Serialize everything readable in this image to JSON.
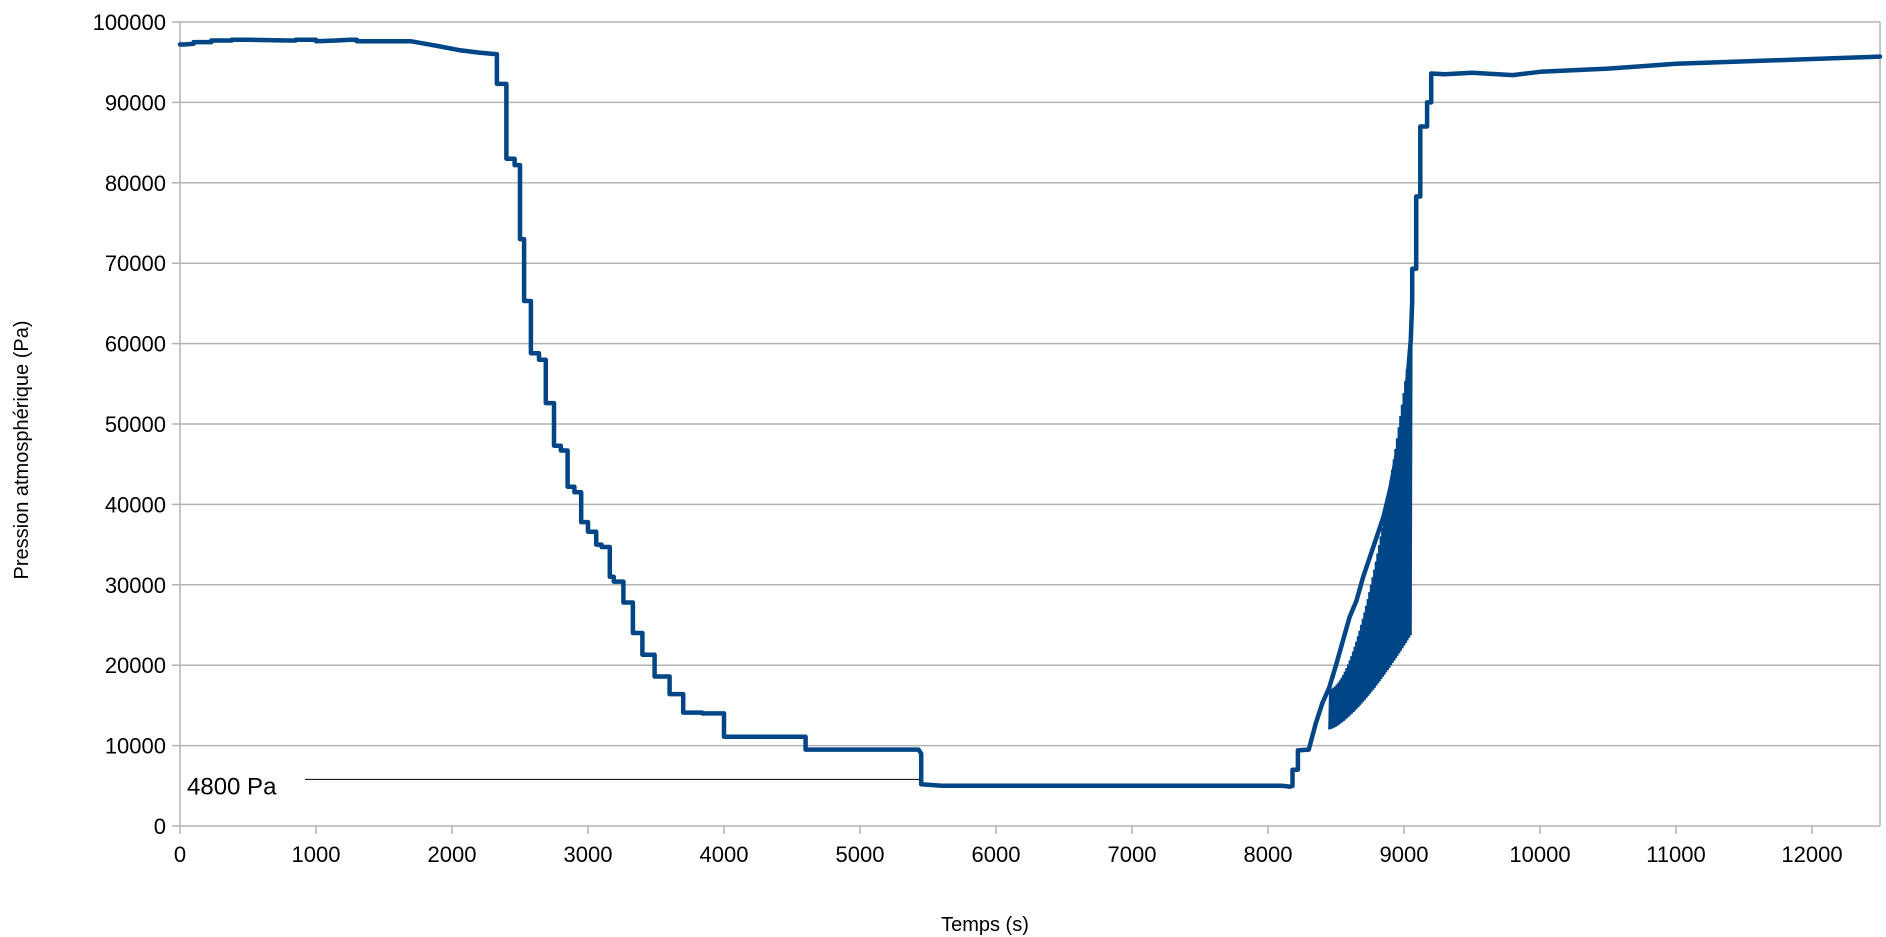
{
  "chart_data": {
    "type": "line",
    "title": "",
    "xlabel": "Temps (s)",
    "ylabel": "Pression atmosphérique (Pa)",
    "xlim": [
      0,
      12500
    ],
    "ylim": [
      0,
      100000
    ],
    "xticks": [
      0,
      1000,
      2000,
      3000,
      4000,
      5000,
      6000,
      7000,
      8000,
      9000,
      10000,
      11000,
      12000
    ],
    "yticks": [
      0,
      10000,
      20000,
      30000,
      40000,
      50000,
      60000,
      70000,
      80000,
      90000,
      100000
    ],
    "grid": "horizontal",
    "legend": "none",
    "colors": {
      "series": "#004586",
      "grid": "#b3b3b3",
      "axis": "#b3b3b3",
      "annotation_line": "#000000"
    },
    "annotations": [
      {
        "text": "4800 Pa",
        "x": 5440,
        "y": 5800
      }
    ],
    "series": [
      {
        "x": [
          0,
          30,
          100,
          100,
          230,
          230,
          380,
          380,
          500,
          800,
          850,
          850,
          1000,
          1000,
          1150,
          1250,
          1300,
          1300,
          1500,
          1700,
          1800,
          1900,
          2050,
          2200,
          2330,
          2330,
          2400,
          2400,
          2460,
          2460,
          2500,
          2500,
          2530,
          2530,
          2580,
          2580,
          2640,
          2640,
          2690,
          2690,
          2750,
          2750,
          2800,
          2800,
          2850,
          2850,
          2900,
          2900,
          2950,
          2950,
          3000,
          3000,
          3060,
          3060,
          3100,
          3100,
          3160,
          3160,
          3190,
          3190,
          3260,
          3260,
          3330,
          3330,
          3400,
          3400,
          3490,
          3490,
          3600,
          3600,
          3700,
          3700,
          3840,
          3840,
          4000,
          4000,
          4220,
          4220,
          4600,
          4600,
          4650,
          5430,
          5450,
          5450,
          5600,
          7500,
          8100,
          8160,
          8180,
          8180,
          8220,
          8220,
          8300,
          8350,
          8400,
          8450,
          8500,
          8550,
          8600,
          8650,
          8700,
          8750,
          8800,
          8850,
          8900,
          8950,
          9000,
          9050,
          9060,
          9060,
          9090,
          9090,
          9120,
          9120,
          9170,
          9170,
          9200,
          9200,
          9300,
          9500,
          9800,
          10000,
          10500,
          11000,
          11500,
          12000,
          12500
        ],
        "y": [
          97200,
          97200,
          97300,
          97500,
          97500,
          97700,
          97700,
          97800,
          97800,
          97700,
          97700,
          97800,
          97800,
          97600,
          97700,
          97800,
          97800,
          97600,
          97600,
          97600,
          97300,
          97000,
          96500,
          96200,
          96000,
          92300,
          92300,
          83000,
          83000,
          82200,
          82200,
          73000,
          73000,
          65300,
          65300,
          58800,
          58800,
          58000,
          58000,
          52600,
          52600,
          47300,
          47300,
          46700,
          46700,
          42200,
          42200,
          41500,
          41500,
          37800,
          37800,
          36600,
          36600,
          35000,
          35000,
          34700,
          34700,
          31000,
          31000,
          30400,
          30400,
          27800,
          27800,
          24000,
          24000,
          21300,
          21300,
          18600,
          18600,
          16400,
          16400,
          14100,
          14100,
          14000,
          14000,
          11100,
          11100,
          11100,
          11100,
          9500,
          9500,
          9500,
          9000,
          5200,
          5000,
          5000,
          5000,
          4900,
          5000,
          7000,
          7000,
          9400,
          9500,
          12700,
          15300,
          17200,
          20000,
          23000,
          26000,
          28000,
          31000,
          33500,
          36000,
          38500,
          42000,
          46500,
          50000,
          60500,
          65300,
          69300,
          69300,
          78300,
          78300,
          87000,
          87000,
          90000,
          90000,
          93600,
          93500,
          93700,
          93400,
          93800,
          94200,
          94800,
          95100,
          95400,
          95700
        ]
      }
    ]
  }
}
